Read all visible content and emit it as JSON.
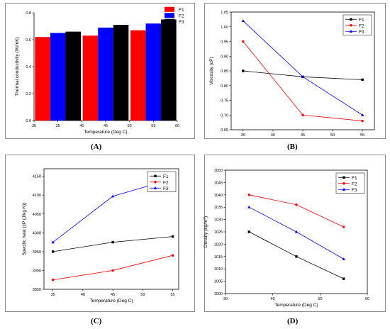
{
  "panels": [
    {
      "label": "(A)",
      "chart_data": {
        "type": "bar",
        "x_centers": [
          35,
          45,
          55
        ],
        "bar_width": 3.2,
        "series": [
          {
            "name": "F1",
            "color": "#ff0000",
            "values": [
              0.62,
              0.63,
              0.67
            ]
          },
          {
            "name": "F2",
            "color": "#0000ff",
            "values": [
              0.65,
              0.69,
              0.72
            ]
          },
          {
            "name": "F3",
            "color": "#000000",
            "values": [
              0.66,
              0.71,
              0.75
            ]
          }
        ],
        "xlabel": "Temperature (Deg C)",
        "ylabel": "Thermal conductivity (W/mK)",
        "xlim": [
          30,
          60
        ],
        "ylim": [
          0.0,
          0.8
        ],
        "xticks": [
          "30",
          "35",
          "40",
          "45",
          "50",
          "55",
          "60"
        ],
        "yticks": [
          "0.0",
          "0.2",
          "0.4",
          "0.6",
          "0.8"
        ],
        "legend": "top-right"
      }
    },
    {
      "label": "(B)",
      "chart_data": {
        "type": "line",
        "x": [
          35,
          45,
          55
        ],
        "series": [
          {
            "name": "F1",
            "color": "#000000",
            "marker": "square",
            "values": [
              0.85,
              0.83,
              0.82
            ]
          },
          {
            "name": "F2",
            "color": "#ff0000",
            "marker": "circle",
            "values": [
              0.95,
              0.7,
              0.68
            ]
          },
          {
            "name": "F3",
            "color": "#0000ff",
            "marker": "triangle",
            "values": [
              1.02,
              0.83,
              0.7
            ]
          }
        ],
        "xlabel": "",
        "ylabel": "Viscosity (cP)",
        "xlim": [
          33,
          57
        ],
        "ylim": [
          0.65,
          1.05
        ],
        "xticks": [
          "35",
          "40",
          "45",
          "50",
          "55"
        ],
        "yticks": [
          "0.65",
          "0.70",
          "0.75",
          "0.80",
          "0.85",
          "0.90",
          "0.95",
          "1.00",
          "1.05"
        ],
        "legend": "top-right"
      }
    },
    {
      "label": "(C)",
      "chart_data": {
        "type": "line",
        "x": [
          35,
          45,
          55
        ],
        "series": [
          {
            "name": "F1",
            "color": "#000000",
            "marker": "square",
            "values": [
              3950,
              3975,
              3990
            ]
          },
          {
            "name": "F2",
            "color": "#ff0000",
            "marker": "circle",
            "values": [
              3875,
              3900,
              3940
            ]
          },
          {
            "name": "F3",
            "color": "#0000ff",
            "marker": "triangle",
            "values": [
              3975,
              4097,
              4143
            ]
          }
        ],
        "xlabel": "Temperature (Deg C)",
        "ylabel": "Specific heat (cP (J/kg K))",
        "xlim": [
          33.5,
          56
        ],
        "ylim": [
          3850,
          4170
        ],
        "xticks": [
          "35",
          "40",
          "45",
          "50",
          "55"
        ],
        "yticks": [
          "3850",
          "3900",
          "3950",
          "4000",
          "4050",
          "4100",
          "4150"
        ],
        "legend": "top-right"
      }
    },
    {
      "label": "(D)",
      "chart_data": {
        "type": "line",
        "x": [
          35,
          45,
          55
        ],
        "series": [
          {
            "name": "F1",
            "color": "#000000",
            "marker": "square",
            "values": [
              1025,
              1015,
              1006
            ]
          },
          {
            "name": "F2",
            "color": "#ff0000",
            "marker": "circle",
            "values": [
              1040,
              1036,
              1027
            ]
          },
          {
            "name": "F3",
            "color": "#0000ff",
            "marker": "triangle",
            "values": [
              1035,
              1025,
              1014
            ]
          }
        ],
        "xlabel": "Temperature (Deg C)",
        "ylabel": "Density (kg/m",
        "ylabel_sup": "3",
        "ylabel_end": ")",
        "xlim": [
          30,
          60
        ],
        "ylim": [
          1000,
          1050
        ],
        "xticks": [
          "30",
          "40",
          "50",
          "60"
        ],
        "yticks": [
          "1000",
          "1005",
          "1010",
          "1015",
          "1020",
          "1025",
          "1030",
          "1035",
          "1040",
          "1045",
          "1050"
        ],
        "legend": "top-right"
      }
    }
  ]
}
